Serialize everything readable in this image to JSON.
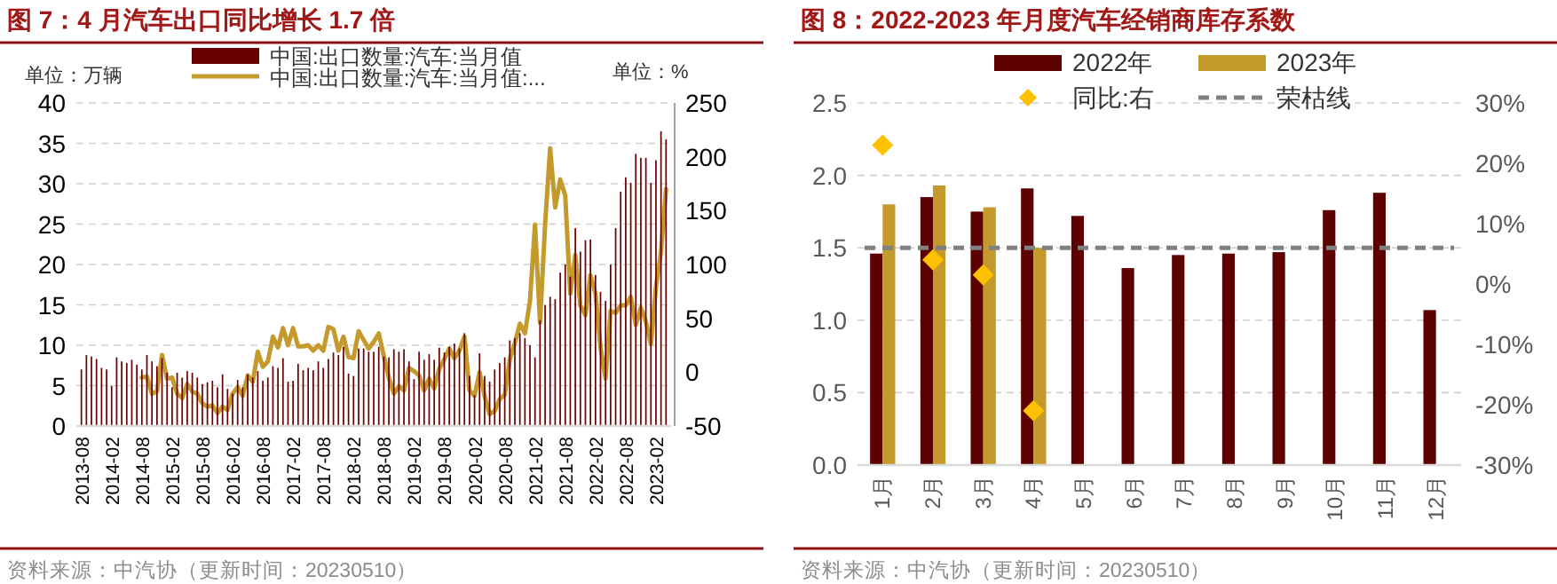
{
  "chart_data": [
    {
      "type": "bar",
      "title": "图 7：4 月汽车出口同比增长 1.7 倍",
      "ylabel": "单位：万辆",
      "y2label": "单位：%",
      "legend": "top",
      "grid": "y",
      "x": [
        "2013-08",
        "2013-09",
        "2013-10",
        "2013-11",
        "2013-12",
        "2014-01",
        "2014-02",
        "2014-03",
        "2014-04",
        "2014-05",
        "2014-06",
        "2014-07",
        "2014-08",
        "2014-09",
        "2014-10",
        "2014-11",
        "2014-12",
        "2015-01",
        "2015-02",
        "2015-03",
        "2015-04",
        "2015-05",
        "2015-06",
        "2015-07",
        "2015-08",
        "2015-09",
        "2015-10",
        "2015-11",
        "2015-12",
        "2016-01",
        "2016-02",
        "2016-03",
        "2016-04",
        "2016-05",
        "2016-06",
        "2016-07",
        "2016-08",
        "2016-09",
        "2016-10",
        "2016-11",
        "2016-12",
        "2017-01",
        "2017-02",
        "2017-03",
        "2017-04",
        "2017-05",
        "2017-06",
        "2017-07",
        "2017-08",
        "2017-09",
        "2017-10",
        "2017-11",
        "2017-12",
        "2018-01",
        "2018-02",
        "2018-03",
        "2018-04",
        "2018-05",
        "2018-06",
        "2018-07",
        "2018-08",
        "2018-09",
        "2018-10",
        "2018-11",
        "2018-12",
        "2019-01",
        "2019-02",
        "2019-03",
        "2019-04",
        "2019-05",
        "2019-06",
        "2019-07",
        "2019-08",
        "2019-09",
        "2019-10",
        "2019-11",
        "2019-12",
        "2020-01",
        "2020-02",
        "2020-03",
        "2020-04",
        "2020-05",
        "2020-06",
        "2020-07",
        "2020-08",
        "2020-09",
        "2020-10",
        "2020-11",
        "2020-12",
        "2021-01",
        "2021-02",
        "2021-03",
        "2021-04",
        "2021-05",
        "2021-06",
        "2021-07",
        "2021-08",
        "2021-09",
        "2021-10",
        "2021-11",
        "2021-12",
        "2022-01",
        "2022-02",
        "2022-03",
        "2022-04",
        "2022-05",
        "2022-06",
        "2022-07",
        "2022-08",
        "2022-09",
        "2022-10",
        "2022-11",
        "2022-12",
        "2023-01",
        "2023-02",
        "2023-03",
        "2023-04"
      ],
      "series": [
        {
          "name": "中国:出口数量:汽车:当月值",
          "color": "#6b0000",
          "values": [
            7.0,
            8.8,
            8.6,
            8.3,
            7.2,
            7.0,
            5.0,
            8.5,
            8.0,
            7.8,
            8.2,
            7.6,
            7.0,
            8.8,
            8.0,
            7.4,
            8.4,
            6.6,
            4.8,
            6.6,
            6.0,
            6.8,
            6.6,
            6.0,
            5.2,
            5.4,
            5.6,
            4.8,
            6.4,
            4.6,
            4.0,
            5.7,
            4.8,
            6.4,
            6.0,
            6.8,
            5.6,
            6.0,
            7.4,
            7.2,
            8.4,
            5.5,
            5.6,
            7.7,
            6.9,
            7.2,
            6.9,
            8.0,
            7.2,
            8.3,
            9.1,
            8.8,
            9.8,
            6.5,
            6.2,
            9.6,
            9.6,
            9.2,
            9.2,
            9.8,
            8.6,
            8.5,
            9.5,
            9.2,
            9.5,
            8.0,
            5.8,
            9.2,
            8.2,
            8.9,
            8.2,
            9.7,
            9.1,
            9.8,
            10.2,
            9.6,
            11.5,
            6.2,
            3.8,
            9.0,
            6.2,
            5.5,
            7.0,
            7.8,
            8.5,
            10.6,
            10.9,
            11.5,
            10.9,
            10.0,
            8.5,
            13.1,
            15.0,
            16.0,
            15.7,
            19.0,
            20.0,
            18.5,
            24.5,
            21.6,
            23.0,
            23.1,
            18.7,
            16.6,
            15.5,
            20.0,
            24.5,
            29.0,
            30.8,
            30.1,
            33.7,
            33.2,
            33.2,
            30.1,
            32.9,
            36.5,
            35.5
          ]
        },
        {
          "name": "中国:出口数量:汽车:当月值:...",
          "type": "line",
          "axis": "y2",
          "color": "#c49a2c",
          "x": [
            "2014-08",
            "2014-09",
            "2014-10",
            "2014-11",
            "2014-12",
            "2015-01",
            "2015-02",
            "2015-03",
            "2015-04",
            "2015-05",
            "2015-06",
            "2015-07",
            "2015-08",
            "2015-09",
            "2015-10",
            "2015-11",
            "2015-12",
            "2016-01",
            "2016-02",
            "2016-03",
            "2016-04",
            "2016-05",
            "2016-06",
            "2016-07",
            "2016-08",
            "2016-09",
            "2016-10",
            "2016-11",
            "2016-12",
            "2017-01",
            "2017-02",
            "2017-03",
            "2017-04",
            "2017-05",
            "2017-06",
            "2017-07",
            "2017-08",
            "2017-09",
            "2017-10",
            "2017-11",
            "2017-12",
            "2018-01",
            "2018-02",
            "2018-03",
            "2018-04",
            "2018-05",
            "2018-06",
            "2018-07",
            "2018-08",
            "2018-09",
            "2018-10",
            "2018-11",
            "2018-12",
            "2019-01",
            "2019-02",
            "2019-03",
            "2019-04",
            "2019-05",
            "2019-06",
            "2019-07",
            "2019-08",
            "2019-09",
            "2019-10",
            "2019-11",
            "2019-12",
            "2020-01",
            "2020-02",
            "2020-03",
            "2020-04",
            "2020-05",
            "2020-06",
            "2020-07",
            "2020-08",
            "2020-09",
            "2020-10",
            "2020-11",
            "2020-12",
            "2021-01",
            "2021-02",
            "2021-03",
            "2021-04",
            "2021-05",
            "2021-06",
            "2021-07",
            "2021-08",
            "2021-09",
            "2021-10",
            "2021-11",
            "2021-12",
            "2022-01",
            "2022-02",
            "2022-03",
            "2022-04",
            "2022-05",
            "2022-06",
            "2022-07",
            "2022-08",
            "2022-09",
            "2022-10",
            "2022-11",
            "2022-12",
            "2023-01",
            "2023-02",
            "2023-03",
            "2023-04"
          ],
          "values": [
            -5,
            -4,
            -20,
            -18,
            16,
            -6,
            -5,
            -20,
            -24,
            -11,
            -18,
            -20,
            -29,
            -32,
            -31,
            -38,
            -32,
            -35,
            -20,
            -14,
            -22,
            -3,
            -9,
            19,
            5,
            10,
            33,
            23,
            41,
            25,
            41,
            24,
            24,
            25,
            20,
            25,
            20,
            42,
            40,
            20,
            33,
            14,
            13,
            38,
            30,
            22,
            28,
            36,
            15,
            -5,
            -20,
            -13,
            -17,
            4,
            1,
            -3,
            -17,
            -6,
            -15,
            3,
            12,
            22,
            13,
            20,
            33,
            -17,
            -22,
            0,
            -22,
            -39,
            -36,
            -25,
            -21,
            12,
            27,
            45,
            36,
            66,
            137,
            46,
            137,
            208,
            153,
            179,
            164,
            73,
            109,
            62,
            53,
            90,
            73,
            23,
            -6,
            57,
            55,
            62,
            62,
            70,
            44,
            60,
            47,
            26,
            79,
            112,
            170
          ]
        }
      ],
      "xlim": [
        "2013-07",
        "2023-05"
      ],
      "xticks": [
        "2013-08",
        "2014-02",
        "2014-08",
        "2015-02",
        "2015-08",
        "2016-02",
        "2016-08",
        "2017-02",
        "2017-08",
        "2018-02",
        "2018-08",
        "2019-02",
        "2019-08",
        "2020-02",
        "2020-08",
        "2021-02",
        "2021-08",
        "2022-02",
        "2022-08",
        "2023-02"
      ],
      "ylim": [
        0,
        40
      ],
      "yticks": [
        0,
        5,
        10,
        15,
        20,
        25,
        30,
        35,
        40
      ],
      "y2lim": [
        -50,
        250
      ],
      "y2ticks": [
        -50,
        0,
        50,
        100,
        150,
        200,
        250
      ],
      "annotations": [
        "资料来源：中汽协（更新时间：20230510）"
      ]
    },
    {
      "type": "bar",
      "title": "图 8：2022-2023 年月度汽车经销商库存系数",
      "legend": "top",
      "grid": "y",
      "categories": [
        "1月",
        "2月",
        "3月",
        "4月",
        "5月",
        "6月",
        "7月",
        "8月",
        "9月",
        "10月",
        "11月",
        "12月"
      ],
      "series": [
        {
          "name": "2022年",
          "color": "#5c0000",
          "values": [
            1.46,
            1.85,
            1.75,
            1.91,
            1.72,
            1.36,
            1.45,
            1.46,
            1.47,
            1.76,
            1.88,
            1.07
          ]
        },
        {
          "name": "2023年",
          "color": "#c49a2c",
          "values": [
            1.8,
            1.93,
            1.78,
            1.5,
            null,
            null,
            null,
            null,
            null,
            null,
            null,
            null
          ]
        },
        {
          "name": "同比:右",
          "type": "scatter",
          "axis": "y2",
          "marker": "diamond",
          "color": "#ffc000",
          "values": [
            23,
            4,
            1.5,
            -21,
            null,
            null,
            null,
            null,
            null,
            null,
            null,
            null
          ]
        }
      ],
      "ref_lines": [
        {
          "axis": "y",
          "value": 1.5,
          "label": "荣枯线",
          "color": "#808080",
          "line_style": "dashed"
        }
      ],
      "ylim": [
        0,
        2.5
      ],
      "yticks": [
        {
          "value": 0,
          "label": "0.0"
        },
        {
          "value": 0.5,
          "label": "0.5"
        },
        {
          "value": 1,
          "label": "1.0"
        },
        {
          "value": 1.5,
          "label": "1.5"
        },
        {
          "value": 2,
          "label": "2.0"
        },
        {
          "value": 2.5,
          "label": "2.5"
        }
      ],
      "y2lim": [
        -30,
        30
      ],
      "y2ticks": [
        {
          "value": -30,
          "label": "-30%"
        },
        {
          "value": -20,
          "label": "-20%"
        },
        {
          "value": -10,
          "label": "-10%"
        },
        {
          "value": 0,
          "label": "0%"
        },
        {
          "value": 10,
          "label": "10%"
        },
        {
          "value": 20,
          "label": "20%"
        },
        {
          "value": 30,
          "label": "30%"
        }
      ],
      "annotations": [
        "资料来源：中汽协（更新时间：20230510）"
      ]
    }
  ]
}
